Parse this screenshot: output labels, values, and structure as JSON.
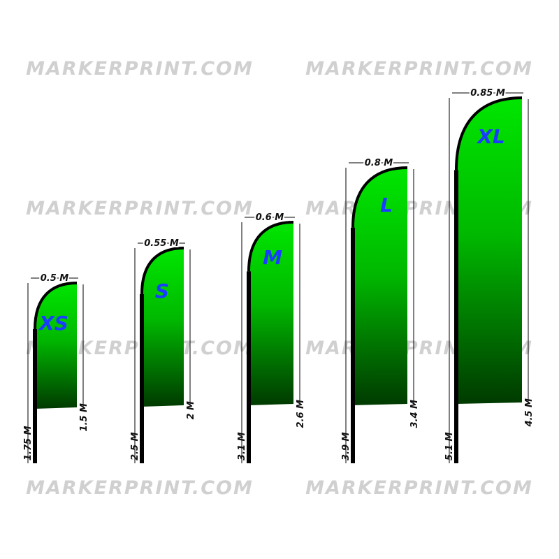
{
  "watermarks": [
    "MARKERPRINT.COM",
    "MARKERPRINT.COM",
    "MARKERPRINT.COM",
    "MARKERPRINT.COM",
    "MARKERPRINT.COM",
    "MARKERPRINT.COM",
    "MARKERPRINT.COM",
    "MARKERPRINT.COM"
  ],
  "flags": [
    {
      "label": "XS",
      "width": "0.5 M",
      "flag_height": "1.5 M",
      "total_height": "1.75 M"
    },
    {
      "label": "S",
      "width": "0.55 M",
      "flag_height": "2 M",
      "total_height": "2.5 M"
    },
    {
      "label": "M",
      "width": "0.6 M",
      "flag_height": "2.6 M",
      "total_height": "3.1 M"
    },
    {
      "label": "L",
      "width": "0.8 M",
      "flag_height": "3.4 M",
      "total_height": "3.9 M"
    },
    {
      "label": "XL",
      "width": "0.85 M",
      "flag_height": "4.5 M",
      "total_height": "5.1 M"
    }
  ]
}
